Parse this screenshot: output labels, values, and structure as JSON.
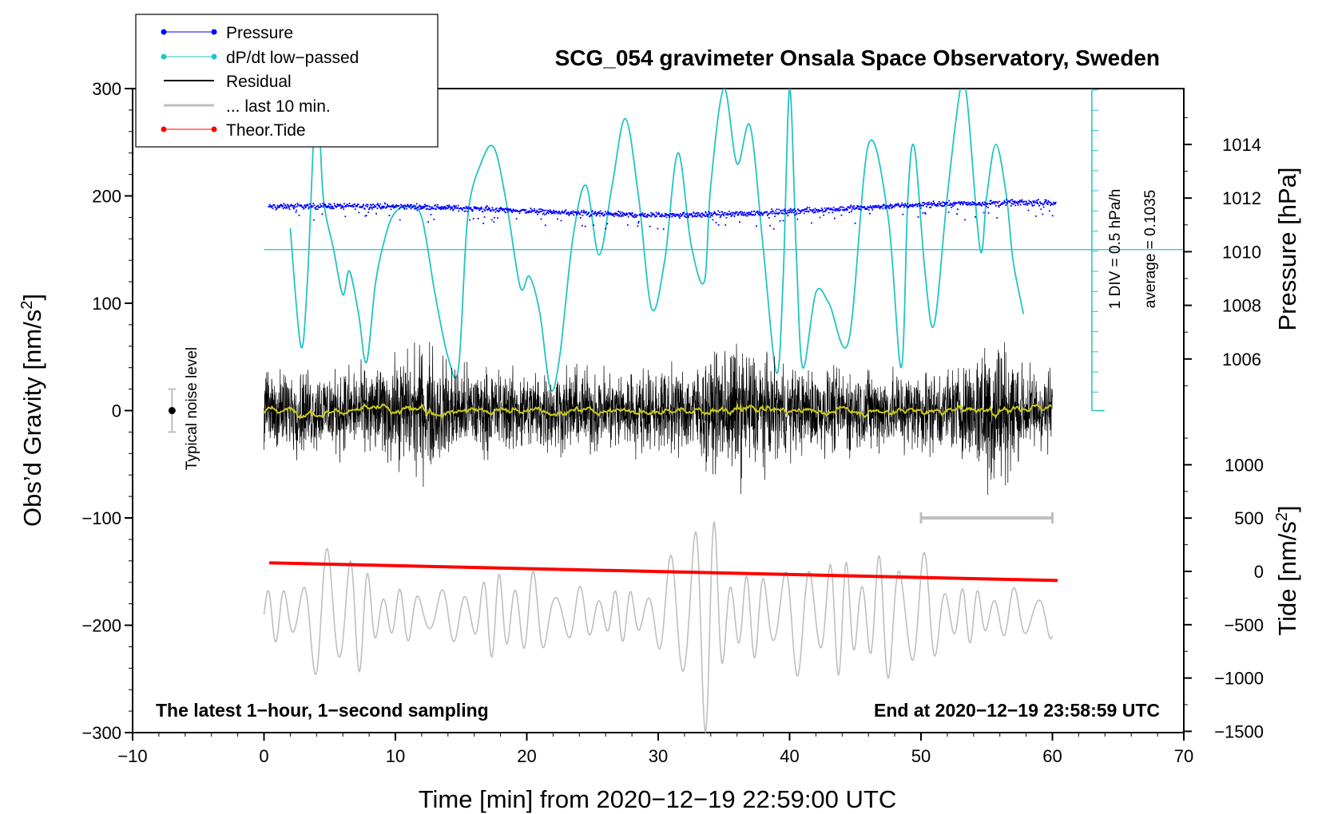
{
  "chart_data": {
    "type": "line",
    "title": "SCG_054 gravimeter Onsala Space Observatory, Sweden",
    "xlabel": "Time [min] from 2020−12−19 22:59:00 UTC",
    "ylabel_main": "Obs’d Gravity [nm/s",
    "ylabel_main_suffix": "]",
    "ylabel_sup": "2",
    "ylabel_pressure": "Pressure [hPa]",
    "ylabel_tide": "Tide [nm/s",
    "ylabel_tide_suffix": "]",
    "ylabel_tide_sup": "2",
    "xlim": [
      -10,
      70
    ],
    "ylim": [
      -300,
      300
    ],
    "xticks": [
      -10,
      0,
      10,
      20,
      30,
      40,
      50,
      60,
      70
    ],
    "xtick_labels": [
      "−10",
      "0",
      "10",
      "20",
      "30",
      "40",
      "50",
      "60",
      "70"
    ],
    "yticks": [
      300,
      200,
      100,
      0,
      -100,
      -200,
      -300
    ],
    "ytick_labels": [
      "300",
      "200",
      "100",
      "0",
      "−100",
      "−200",
      "−300"
    ],
    "pressure_ticks": [
      1014,
      1012,
      1010,
      1008,
      1006
    ],
    "pressure_tick_labels": [
      "1014",
      "1012",
      "1010",
      "1008",
      "1006"
    ],
    "tide_ticks": [
      1000,
      500,
      0,
      -500,
      -1000,
      -1500
    ],
    "tide_tick_labels": [
      "1000",
      "500",
      "0",
      "−500",
      "−1000",
      "−1500"
    ],
    "legend": [
      {
        "label": "Pressure",
        "color": "#0000ff",
        "marker": true
      },
      {
        "label": "dP/dt low−passed",
        "color": "#22c4c4",
        "marker": true
      },
      {
        "label": "Residual",
        "color": "#000000",
        "marker": false
      },
      {
        "label": "... last 10 min.",
        "color": "#bfbfbf",
        "marker": false
      },
      {
        "label": "Theor.Tide",
        "color": "#ff0000",
        "marker": true
      }
    ],
    "annotations": {
      "noise": "Typical noise level",
      "div": "1 DIV = 0.5 hPa/h",
      "average": "average = 0.1035",
      "bottom_left": "The latest 1−hour, 1−second sampling",
      "bottom_right": "End at 2020−12−19 23:58:59 UTC"
    },
    "series": [
      {
        "name": "Pressure",
        "unit": "hPa",
        "x_range": [
          0.3,
          60.2
        ],
        "start": 1011.7,
        "end": 1011.8,
        "mid": 1011.3
      },
      {
        "name": "dP/dt low-passed",
        "unit": "gravity-axis",
        "x": [
          2.0,
          2.8,
          3.3,
          4.0,
          4.5,
          5.3,
          6.0,
          6.5,
          7.2,
          7.8,
          8.5,
          9.3,
          10.0,
          11.0,
          12.0,
          13.0,
          14.0,
          14.8,
          15.5,
          16.5,
          17.5,
          18.5,
          19.5,
          20.2,
          21.0,
          21.8,
          22.5,
          23.5,
          24.5,
          25.5,
          26.5,
          27.5,
          28.5,
          29.5,
          30.5,
          31.5,
          32.5,
          33.5,
          34.0,
          35.0,
          36.0,
          37.0,
          38.0,
          39.0,
          39.5,
          40.0,
          40.5,
          41.0,
          42.0,
          43.0,
          44.5,
          46.0,
          47.5,
          48.5,
          49.0,
          49.5,
          50.3,
          51.0,
          52.0,
          53.0,
          53.5,
          54.5,
          55.0,
          55.7,
          56.5,
          57.0,
          57.8
        ],
        "y": [
          170,
          60,
          120,
          300,
          200,
          150,
          108,
          130,
          90,
          45,
          120,
          165,
          185,
          190,
          180,
          110,
          50,
          40,
          180,
          230,
          245,
          190,
          115,
          125,
          90,
          20,
          50,
          160,
          210,
          145,
          210,
          272,
          200,
          95,
          140,
          240,
          155,
          120,
          210,
          300,
          230,
          265,
          150,
          35,
          120,
          300,
          150,
          40,
          110,
          100,
          65,
          248,
          180,
          40,
          200,
          245,
          130,
          80,
          200,
          300,
          290,
          150,
          200,
          248,
          200,
          140,
          90
        ]
      },
      {
        "name": "Residual",
        "unit": "nm/s2",
        "x_range": [
          0,
          60
        ],
        "mean": 0,
        "amplitude": 45
      },
      {
        "name": "... last 10 min.",
        "unit": "nm/s2",
        "x_range": [
          50,
          60
        ],
        "y": -100
      },
      {
        "name": "Theor.Tide",
        "unit": "nm/s2 (tide axis)",
        "x": [
          0.5,
          60.3
        ],
        "y": [
          80,
          -85
        ]
      }
    ]
  }
}
